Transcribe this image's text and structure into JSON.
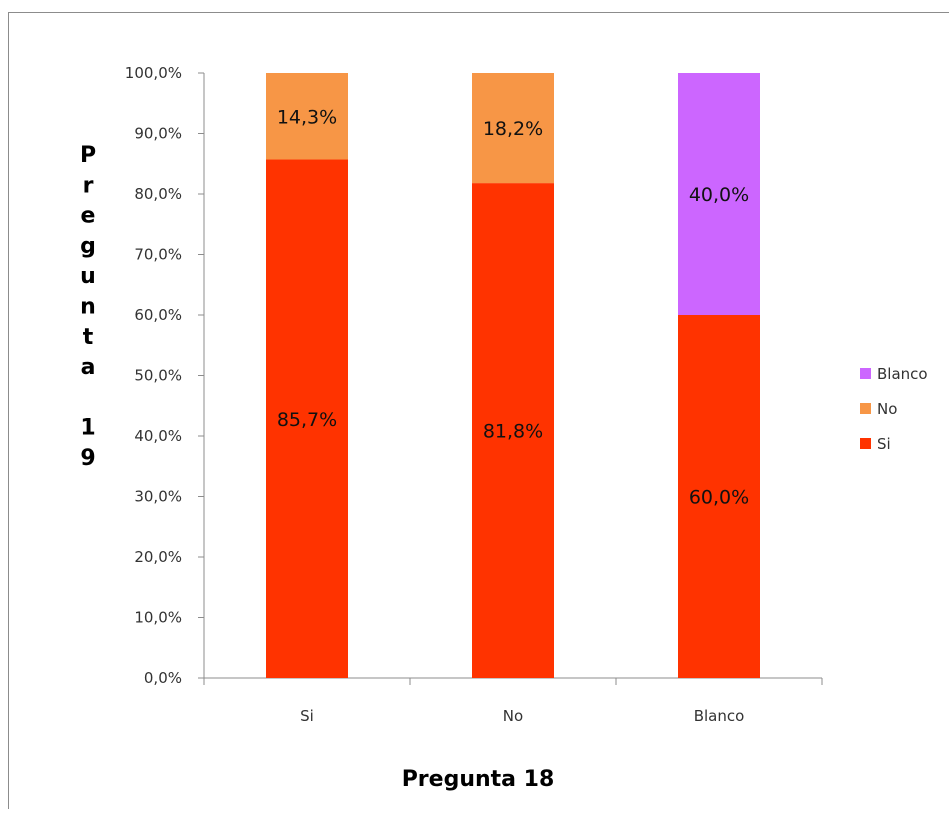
{
  "chart_data": {
    "type": "bar",
    "stacked": true,
    "categories": [
      "Si",
      "No",
      "Blanco"
    ],
    "series": [
      {
        "name": "Si",
        "values": [
          85.7,
          81.8,
          60.0
        ],
        "labels": [
          "85,7%",
          "81,8%",
          "60,0%"
        ],
        "color": "#ff3300"
      },
      {
        "name": "No",
        "values": [
          14.3,
          18.2,
          0
        ],
        "labels": [
          "14,3%",
          "18,2%",
          ""
        ],
        "color": "#f79646"
      },
      {
        "name": "Blanco",
        "values": [
          0,
          0,
          40.0
        ],
        "labels": [
          "",
          "",
          "40,0%"
        ],
        "color": "#cc66ff"
      }
    ],
    "xlabel": "Pregunta 18",
    "ylabel": "Pregunta 19",
    "ylim": [
      0,
      100
    ],
    "yticks": [
      "0,0%",
      "10,0%",
      "20,0%",
      "30,0%",
      "40,0%",
      "50,0%",
      "60,0%",
      "70,0%",
      "80,0%",
      "90,0%",
      "100,0%"
    ],
    "grid": false,
    "legend": {
      "position": "right",
      "order": [
        "Blanco",
        "No",
        "Si"
      ]
    }
  }
}
